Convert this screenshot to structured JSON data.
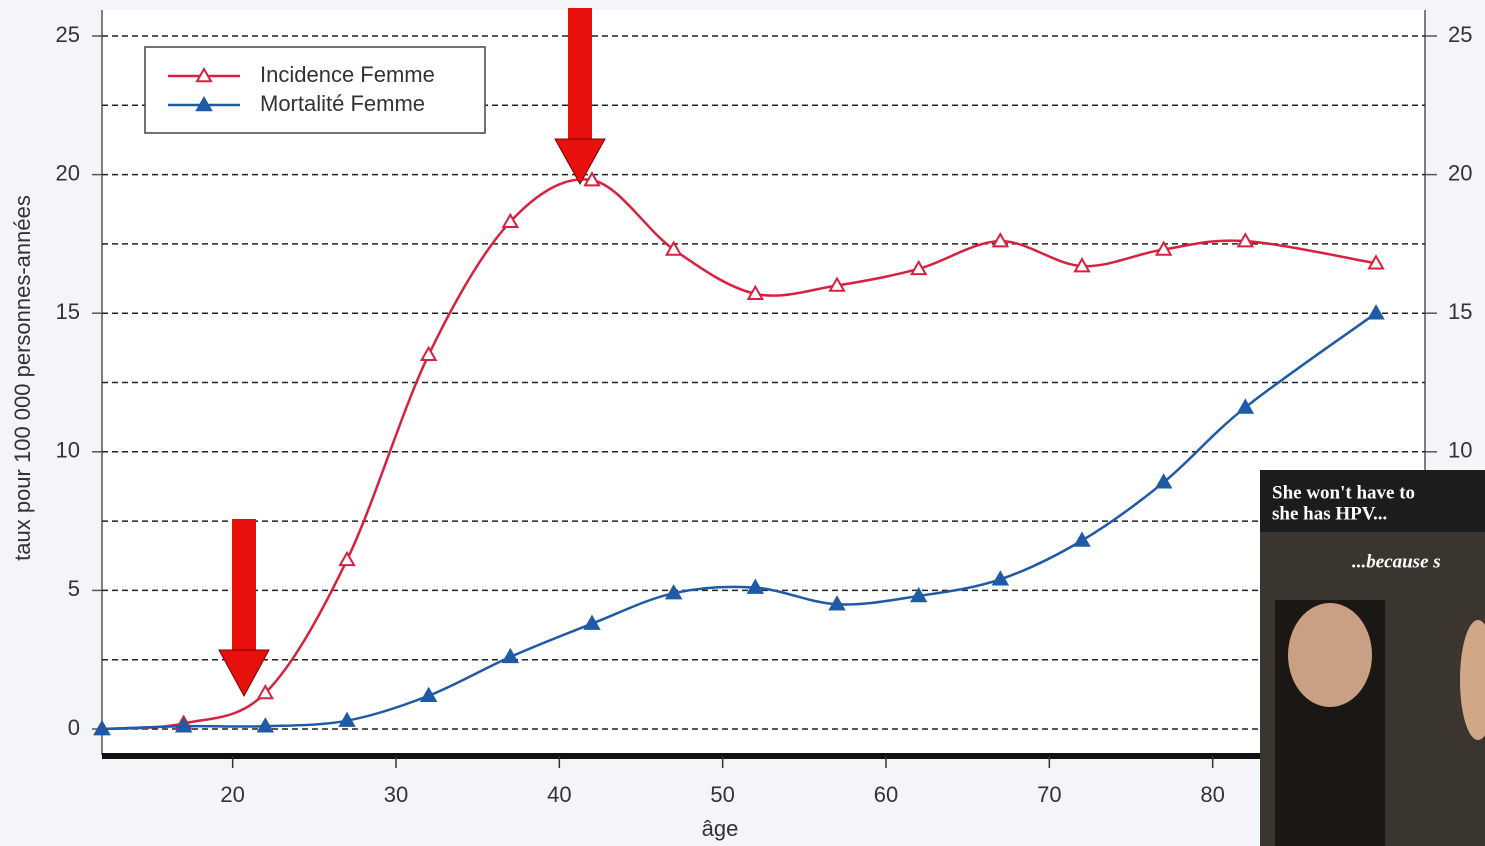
{
  "chart_data": {
    "type": "line",
    "x_label": "âge",
    "y_label": "taux pour 100 000 personnes-années",
    "x": [
      12,
      17,
      22,
      27,
      32,
      37,
      42,
      47,
      52,
      57,
      62,
      67,
      72,
      77,
      82,
      90
    ],
    "series": [
      {
        "name": "Incidence Femme",
        "color": "#d7213f",
        "marker": "open-triangle",
        "values": [
          0.0,
          0.2,
          1.3,
          6.1,
          13.5,
          18.3,
          19.8,
          17.3,
          15.7,
          16.0,
          16.6,
          17.6,
          16.7,
          17.3,
          17.6,
          16.8
        ]
      },
      {
        "name": "Mortalité Femme",
        "color": "#1f5aa6",
        "marker": "filled-triangle",
        "values": [
          0.0,
          0.1,
          0.1,
          0.3,
          1.2,
          2.6,
          3.8,
          4.9,
          5.1,
          4.5,
          4.8,
          5.4,
          6.8,
          8.9,
          11.6,
          15.0
        ]
      }
    ],
    "xlim": [
      12,
      93
    ],
    "xticks": [
      20,
      30,
      40,
      50,
      60,
      70,
      80
    ],
    "ylim": [
      -1,
      25.5
    ],
    "yticks": [
      0,
      5,
      10,
      15,
      20,
      25
    ],
    "y_minor_gridlines": [
      2.5,
      7.5,
      12.5,
      17.5,
      22.5
    ],
    "y2lim": [
      -1,
      25.5
    ],
    "y2ticks": [
      10,
      15,
      20,
      25
    ],
    "grid": true,
    "legend_position": "top-left",
    "overlay_texts": [
      "She won't have to",
      "she has HPV...",
      "...because s"
    ]
  }
}
